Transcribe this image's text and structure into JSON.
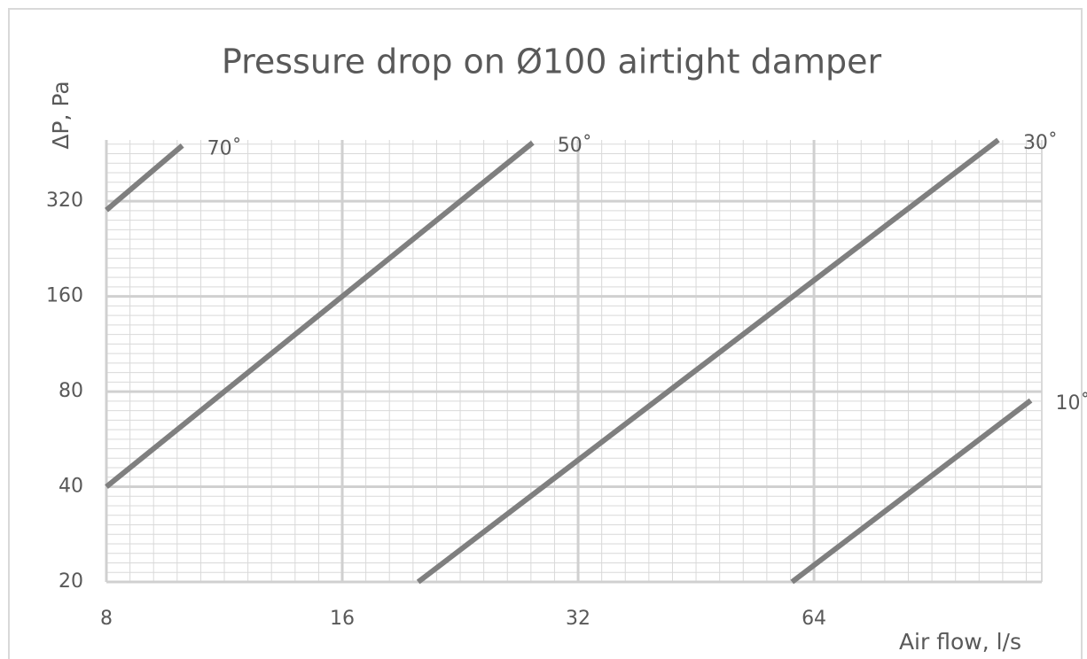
{
  "chart_data": {
    "type": "line",
    "title": "Pressure drop on Ø100 airtight damper",
    "x_label": "Air flow, l/s",
    "y_label": "ΔP, Pa",
    "xscale": "log",
    "yscale": "log",
    "grid": true,
    "xlim": [
      8,
      125
    ],
    "xticks": [
      8,
      16,
      32,
      64
    ],
    "ylim": [
      20,
      500
    ],
    "yticks": [
      20,
      40,
      80,
      160,
      320
    ],
    "series": [
      {
        "name": "70˚",
        "color": "#7f7f7f",
        "x": [
          8,
          10
        ],
        "values": [
          300,
          480
        ]
      },
      {
        "name": "50˚",
        "color": "#7f7f7f",
        "x": [
          8,
          28
        ],
        "values": [
          40,
          490
        ]
      },
      {
        "name": "30˚",
        "color": "#7f7f7f",
        "x": [
          20,
          110
        ],
        "values": [
          20,
          500
        ]
      },
      {
        "name": "10˚",
        "color": "#7f7f7f",
        "x": [
          60,
          121
        ],
        "values": [
          20,
          75
        ]
      }
    ]
  }
}
